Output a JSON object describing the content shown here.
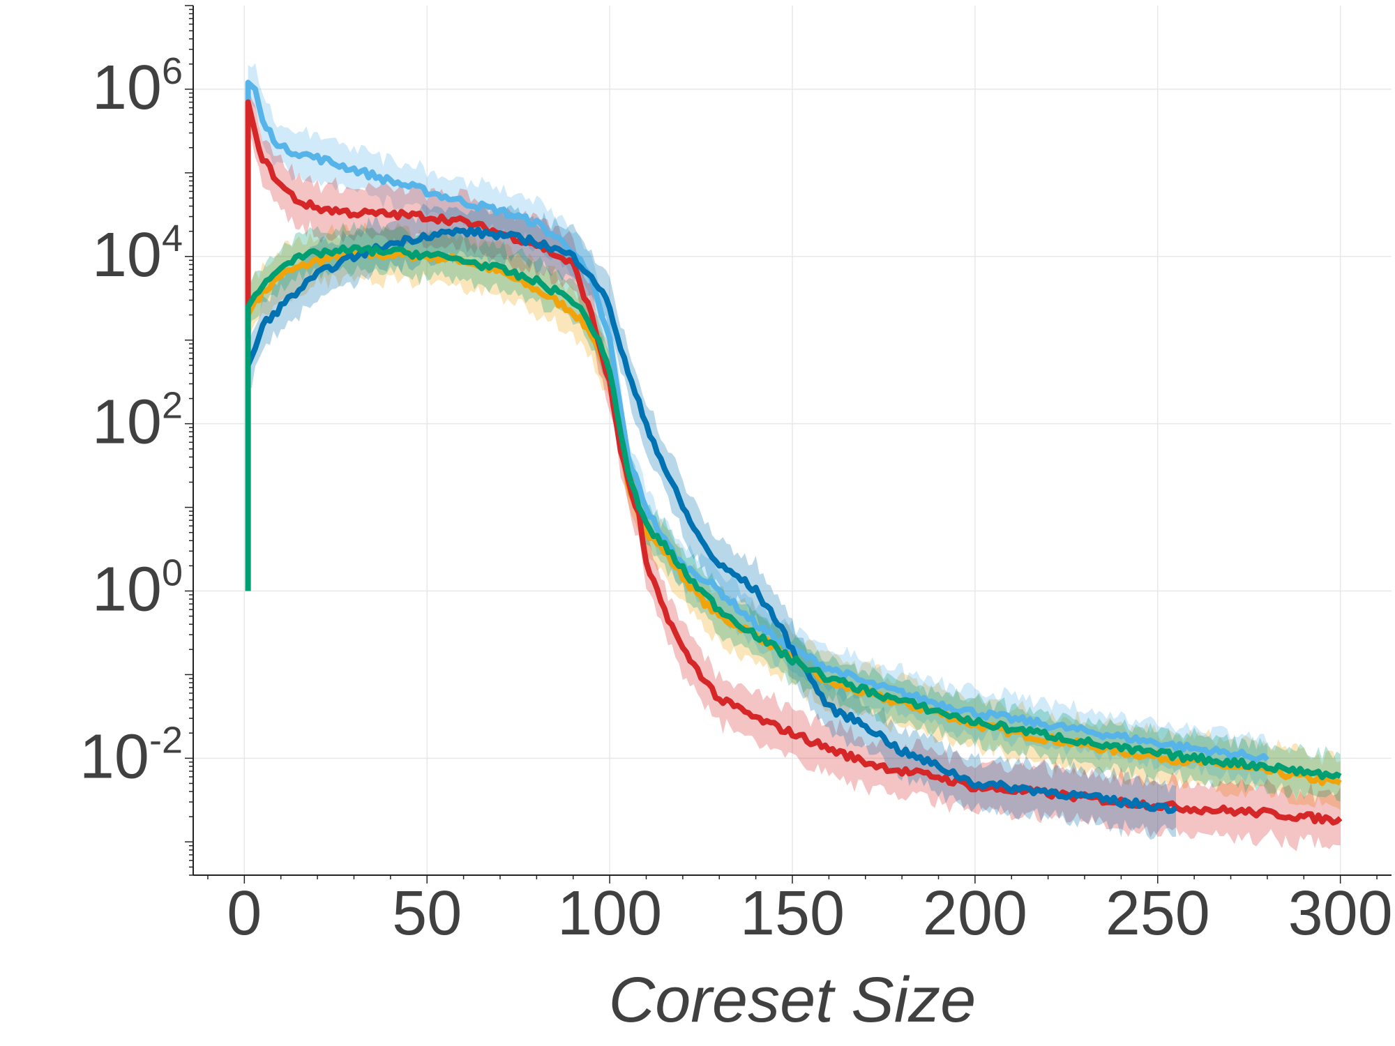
{
  "chart_data": {
    "type": "line",
    "title": "",
    "xlabel": "Coreset Size",
    "ylabel": "",
    "xlim": [
      -14,
      314
    ],
    "ylim": [
      0.0004,
      10000000
    ],
    "yscale": "log",
    "grid": true,
    "legend": "none",
    "x_ticks": [
      0,
      50,
      100,
      150,
      200,
      250,
      300
    ],
    "x_tick_labels": [
      "0",
      "50",
      "100",
      "150",
      "200",
      "250",
      "300"
    ],
    "y_ticks": [
      0.01,
      1,
      100,
      10000,
      1000000
    ],
    "y_tick_labels": [
      {
        "base": "10",
        "exp": "-2"
      },
      {
        "base": "10",
        "exp": "0"
      },
      {
        "base": "10",
        "exp": "2"
      },
      {
        "base": "10",
        "exp": "4"
      },
      {
        "base": "10",
        "exp": "6"
      }
    ],
    "series": [
      {
        "color": "#F0A30A",
        "band": 0.35,
        "x": [
          1,
          1,
          3,
          10,
          20,
          30,
          40,
          50,
          60,
          70,
          80,
          90,
          95,
          100,
          105,
          110,
          115,
          120,
          125,
          130,
          140,
          150,
          160,
          170,
          180,
          190,
          200,
          220,
          240,
          260,
          280,
          300
        ],
        "y": [
          1,
          2000,
          3000,
          6000,
          9000,
          10500,
          10500,
          10000,
          9000,
          6500,
          4000,
          2200,
          1200,
          400,
          20,
          5,
          3,
          1.5,
          0.8,
          0.5,
          0.3,
          0.15,
          0.08,
          0.06,
          0.045,
          0.035,
          0.025,
          0.017,
          0.012,
          0.009,
          0.007,
          0.005
        ]
      },
      {
        "color": "#009E73",
        "band": 0.3,
        "x": [
          1,
          1,
          3,
          10,
          20,
          30,
          40,
          50,
          60,
          70,
          80,
          90,
          95,
          100,
          105,
          110,
          115,
          120,
          125,
          130,
          140,
          150,
          160,
          170,
          180,
          190,
          200,
          220,
          240,
          260,
          280,
          300
        ],
        "y": [
          1,
          2500,
          3500,
          8000,
          11000,
          12000,
          11500,
          10500,
          9000,
          7000,
          5000,
          3000,
          1500,
          450,
          25,
          6,
          3.5,
          1.8,
          1.0,
          0.6,
          0.3,
          0.15,
          0.09,
          0.065,
          0.048,
          0.036,
          0.027,
          0.019,
          0.013,
          0.01,
          0.008,
          0.006
        ]
      },
      {
        "color": "#56B4E9",
        "band": 0.3,
        "x": [
          1,
          1,
          3,
          5,
          10,
          20,
          30,
          40,
          50,
          60,
          70,
          80,
          90,
          95,
          100,
          105,
          110,
          115,
          120,
          125,
          130,
          140,
          150,
          160,
          170,
          180,
          190,
          200,
          220,
          240,
          260,
          280
        ],
        "y": [
          2000,
          1200000,
          1000000,
          400000,
          200000,
          150000,
          110000,
          80000,
          60000,
          45000,
          35000,
          25000,
          12000,
          5000,
          1000,
          40,
          10,
          4,
          2,
          1.5,
          1,
          0.4,
          0.2,
          0.12,
          0.08,
          0.06,
          0.045,
          0.035,
          0.025,
          0.018,
          0.013,
          0.01
        ]
      },
      {
        "color": "#D62728",
        "band": 0.35,
        "x": [
          1,
          1,
          3,
          5,
          10,
          15,
          20,
          30,
          40,
          50,
          60,
          70,
          80,
          90,
          95,
          100,
          103,
          105,
          108,
          110,
          115,
          120,
          125,
          130,
          135,
          140,
          150,
          160,
          170,
          180,
          190,
          200,
          220,
          240,
          260,
          280,
          300
        ],
        "y": [
          1000,
          700000,
          300000,
          150000,
          70000,
          45000,
          38000,
          33000,
          32000,
          30000,
          26000,
          19000,
          14000,
          8000,
          2000,
          300,
          50,
          20,
          8,
          2,
          0.6,
          0.2,
          0.1,
          0.05,
          0.04,
          0.03,
          0.02,
          0.013,
          0.009,
          0.007,
          0.006,
          0.0045,
          0.0038,
          0.003,
          0.0025,
          0.0022,
          0.0018
        ]
      },
      {
        "color": "#0072B2",
        "band": 0.35,
        "x": [
          1,
          3,
          5,
          10,
          15,
          20,
          25,
          30,
          40,
          50,
          60,
          70,
          80,
          90,
          95,
          100,
          103,
          106,
          110,
          115,
          120,
          125,
          130,
          135,
          140,
          145,
          150,
          160,
          170,
          180,
          190,
          200,
          220,
          240,
          255
        ],
        "y": [
          500,
          800,
          1500,
          2500,
          4000,
          6000,
          8000,
          10000,
          14000,
          18000,
          20000,
          18000,
          15000,
          10000,
          6000,
          2500,
          800,
          300,
          100,
          30,
          10,
          4,
          2,
          1.5,
          1,
          0.5,
          0.2,
          0.04,
          0.025,
          0.012,
          0.008,
          0.005,
          0.004,
          0.003,
          0.0025
        ]
      }
    ]
  }
}
